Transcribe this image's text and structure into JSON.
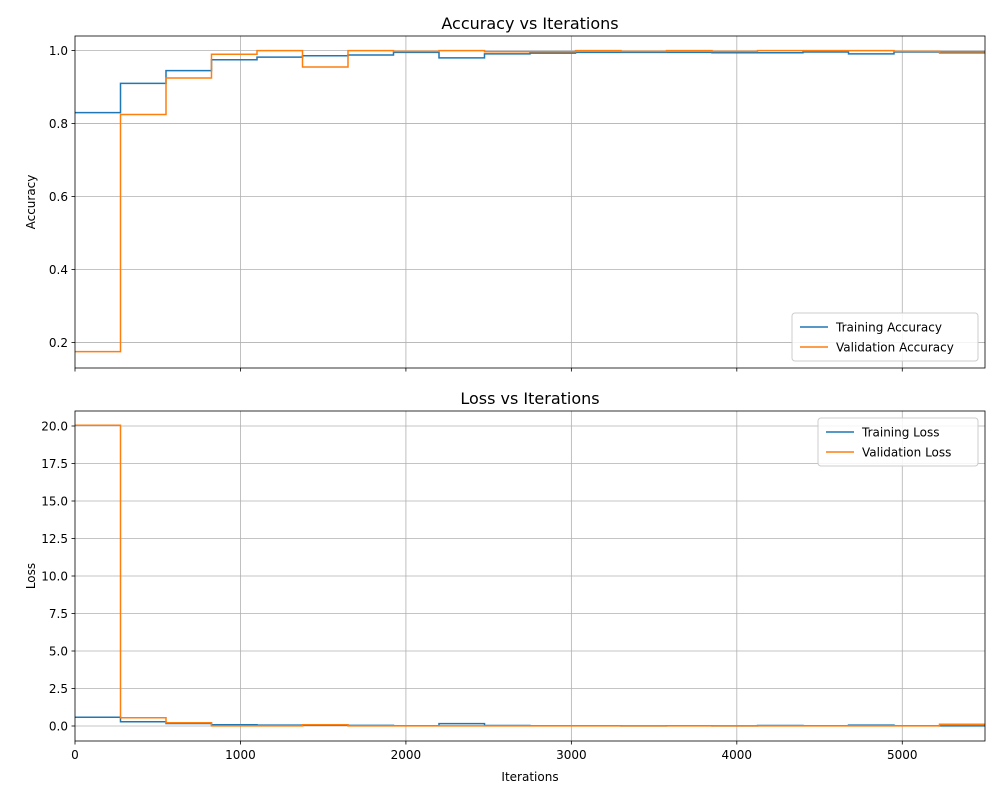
{
  "chart_data": [
    {
      "type": "line",
      "step": "post",
      "title": "Accuracy vs Iterations",
      "xlabel": "",
      "ylabel": "Accuracy",
      "xlim": [
        0,
        5500
      ],
      "ylim": [
        0.13,
        1.04
      ],
      "xticks": [
        0,
        1000,
        2000,
        3000,
        4000,
        5000
      ],
      "xtick_labels": [
        "",
        "",
        "",
        "",
        "",
        ""
      ],
      "yticks": [
        0.2,
        0.4,
        0.6,
        0.8,
        1.0
      ],
      "ytick_labels": [
        "0.2",
        "0.4",
        "0.6",
        "0.8",
        "1.0"
      ],
      "grid": true,
      "legend_position": "lower right",
      "x": [
        0,
        275,
        550,
        825,
        1100,
        1375,
        1650,
        1925,
        2200,
        2475,
        2750,
        3025,
        3300,
        3575,
        3850,
        4125,
        4400,
        4675,
        4950,
        5225,
        5500
      ],
      "series": [
        {
          "name": "Training Accuracy",
          "color": "#1f77b4",
          "values": [
            0.83,
            0.91,
            0.945,
            0.975,
            0.982,
            0.986,
            0.988,
            0.995,
            0.98,
            0.991,
            0.993,
            0.995,
            0.995,
            0.995,
            0.994,
            0.994,
            0.996,
            0.991,
            0.996,
            0.996,
            0.996
          ]
        },
        {
          "name": "Validation Accuracy",
          "color": "#ff7f0e",
          "values": [
            0.175,
            0.825,
            0.925,
            0.99,
            1.0,
            0.955,
            1.0,
            0.998,
            1.0,
            0.997,
            0.997,
            1.0,
            0.998,
            1.0,
            0.998,
            1.0,
            1.0,
            1.0,
            0.998,
            0.993,
            0.993
          ]
        }
      ]
    },
    {
      "type": "line",
      "step": "post",
      "title": "Loss vs Iterations",
      "xlabel": "Iterations",
      "ylabel": "Loss",
      "xlim": [
        0,
        5500
      ],
      "ylim": [
        -1.0,
        21.0
      ],
      "xticks": [
        0,
        1000,
        2000,
        3000,
        4000,
        5000
      ],
      "xtick_labels": [
        "0",
        "1000",
        "2000",
        "3000",
        "4000",
        "5000"
      ],
      "yticks": [
        0.0,
        2.5,
        5.0,
        7.5,
        10.0,
        12.5,
        15.0,
        17.5,
        20.0
      ],
      "ytick_labels": [
        "0.0",
        "2.5",
        "5.0",
        "7.5",
        "10.0",
        "12.5",
        "15.0",
        "17.5",
        "20.0"
      ],
      "grid": true,
      "legend_position": "upper right",
      "x": [
        0,
        275,
        550,
        825,
        1100,
        1375,
        1650,
        1925,
        2200,
        2475,
        2750,
        3025,
        3300,
        3575,
        3850,
        4125,
        4400,
        4675,
        4950,
        5225,
        5500
      ],
      "series": [
        {
          "name": "Training Loss",
          "color": "#1f77b4",
          "values": [
            0.58,
            0.28,
            0.17,
            0.08,
            0.06,
            0.05,
            0.04,
            0.02,
            0.16,
            0.03,
            0.02,
            0.02,
            0.01,
            0.02,
            0.01,
            0.03,
            0.02,
            0.06,
            0.02,
            0.01,
            0.01
          ]
        },
        {
          "name": "Validation Loss",
          "color": "#ff7f0e",
          "values": [
            20.05,
            0.55,
            0.22,
            0.01,
            0.01,
            0.08,
            0.01,
            0.01,
            0.01,
            0.01,
            0.01,
            0.01,
            0.01,
            0.01,
            0.01,
            0.01,
            0.01,
            0.01,
            0.01,
            0.12,
            0.12
          ]
        }
      ]
    }
  ]
}
